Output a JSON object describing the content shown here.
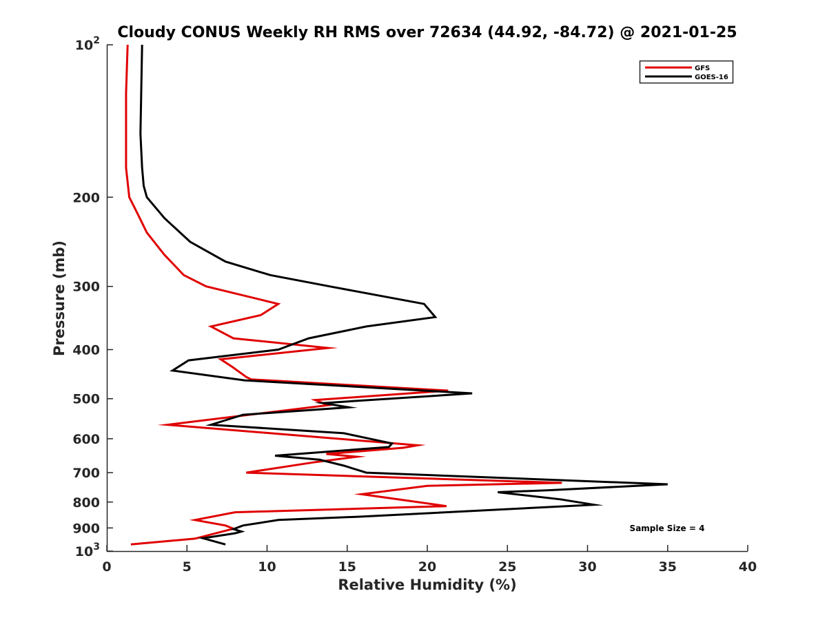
{
  "chart_data": {
    "type": "line",
    "title": "Cloudy CONUS Weekly RH RMS over 72634 (44.92, -84.72) @ 2021-01-25",
    "xlabel": "Relative Humidity (%)",
    "ylabel": "Pressure (mb)",
    "xlim": [
      0,
      40
    ],
    "ylim": [
      100,
      1000
    ],
    "yscale": "log",
    "y_reversed": true,
    "grid": false,
    "legend_position": "top-right",
    "x_ticks": [
      "0",
      "5",
      "10",
      "15",
      "20",
      "25",
      "30",
      "35",
      "40"
    ],
    "y_ticks": [
      {
        "value": 100,
        "base": "10",
        "exp": "2"
      },
      {
        "value": 200,
        "label": "200"
      },
      {
        "value": 300,
        "label": "300"
      },
      {
        "value": 400,
        "label": "400"
      },
      {
        "value": 500,
        "label": "500"
      },
      {
        "value": 600,
        "label": "600"
      },
      {
        "value": 700,
        "label": "700"
      },
      {
        "value": 800,
        "label": "800"
      },
      {
        "value": 900,
        "label": "900"
      },
      {
        "value": 1000,
        "base": "10",
        "exp": "3"
      }
    ],
    "annotation": "Sample Size = 4",
    "series": [
      {
        "name": "GFS",
        "color": "#e00000",
        "points": [
          [
            1.3,
            100
          ],
          [
            1.2,
            125
          ],
          [
            1.2,
            150
          ],
          [
            1.2,
            175
          ],
          [
            1.4,
            200
          ],
          [
            1.9,
            215
          ],
          [
            2.5,
            235
          ],
          [
            3.6,
            260
          ],
          [
            4.8,
            285
          ],
          [
            6.2,
            300
          ],
          [
            10.7,
            325
          ],
          [
            9.6,
            342
          ],
          [
            6.5,
            360
          ],
          [
            7.9,
            380
          ],
          [
            13.8,
            397
          ],
          [
            7.1,
            418
          ],
          [
            7.8,
            432
          ],
          [
            8.7,
            453
          ],
          [
            9.0,
            458
          ],
          [
            21.3,
            482
          ],
          [
            13.0,
            503
          ],
          [
            13.8,
            515
          ],
          [
            3.8,
            563
          ],
          [
            19.4,
            618
          ],
          [
            18.5,
            625
          ],
          [
            13.7,
            643
          ],
          [
            15.6,
            651
          ],
          [
            12.9,
            668
          ],
          [
            8.7,
            700
          ],
          [
            28.4,
            733
          ],
          [
            20.0,
            743
          ],
          [
            15.9,
            772
          ],
          [
            21.2,
            815
          ],
          [
            8.0,
            838
          ],
          [
            5.5,
            868
          ],
          [
            7.4,
            890
          ],
          [
            7.9,
            903
          ],
          [
            5.5,
            945
          ],
          [
            1.5,
            970
          ]
        ]
      },
      {
        "name": "GOES-16",
        "color": "#000000",
        "points": [
          [
            2.2,
            100
          ],
          [
            2.1,
            150
          ],
          [
            2.2,
            175
          ],
          [
            2.3,
            190
          ],
          [
            2.5,
            200
          ],
          [
            3.6,
            220
          ],
          [
            5.2,
            245
          ],
          [
            7.4,
            268
          ],
          [
            10.2,
            285
          ],
          [
            13.9,
            300
          ],
          [
            19.8,
            325
          ],
          [
            20.5,
            345
          ],
          [
            16.2,
            360
          ],
          [
            12.6,
            380
          ],
          [
            10.7,
            400
          ],
          [
            5.1,
            420
          ],
          [
            4.1,
            440
          ],
          [
            8.6,
            460
          ],
          [
            22.8,
            488
          ],
          [
            13.5,
            510
          ],
          [
            15.1,
            520
          ],
          [
            8.5,
            538
          ],
          [
            6.5,
            563
          ],
          [
            14.8,
            585
          ],
          [
            17.8,
            613
          ],
          [
            17.6,
            623
          ],
          [
            10.5,
            648
          ],
          [
            13.3,
            660
          ],
          [
            14.8,
            678
          ],
          [
            16.2,
            700
          ],
          [
            35.0,
            738
          ],
          [
            27.6,
            758
          ],
          [
            24.4,
            765
          ],
          [
            28.3,
            790
          ],
          [
            30.4,
            810
          ],
          [
            15.8,
            855
          ],
          [
            10.7,
            868
          ],
          [
            8.5,
            890
          ],
          [
            7.9,
            905
          ],
          [
            8.4,
            915
          ],
          [
            8.0,
            922
          ],
          [
            6.0,
            943
          ],
          [
            7.4,
            970
          ]
        ]
      }
    ]
  }
}
